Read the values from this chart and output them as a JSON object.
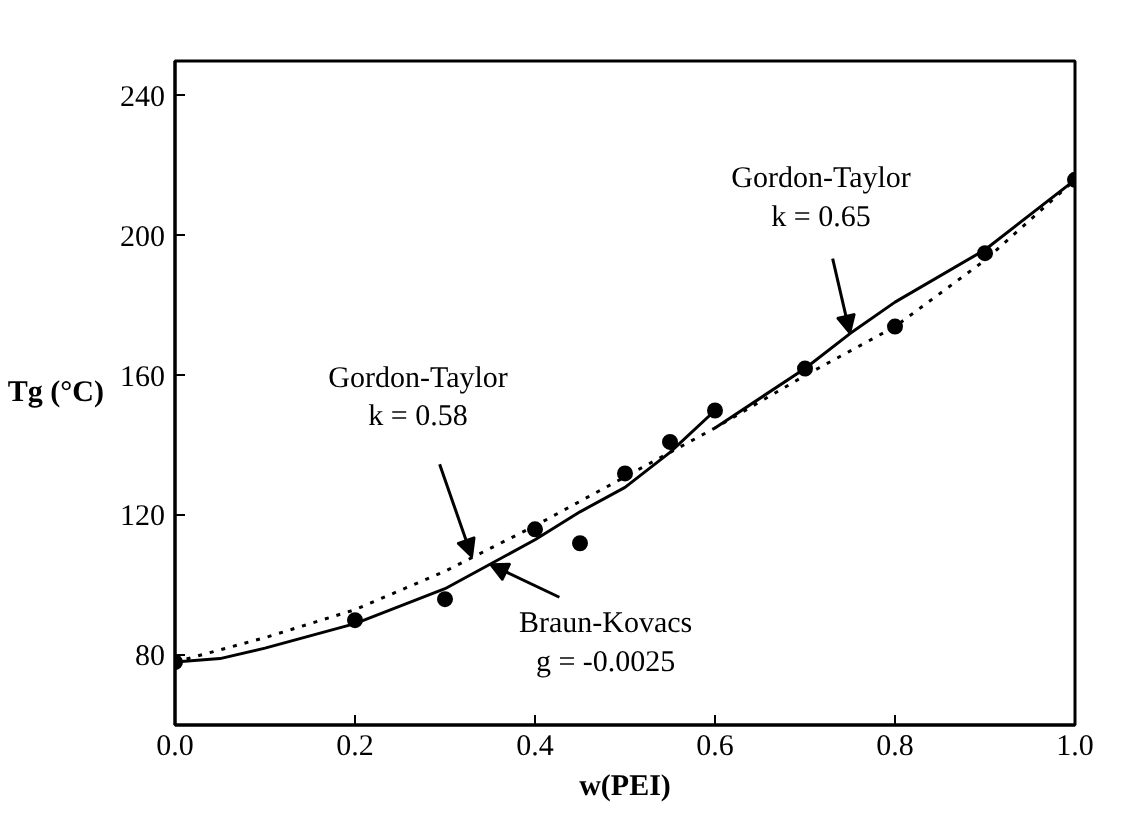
{
  "chart_data": {
    "type": "line",
    "xlabel": "w(PEI)",
    "ylabel": "Tg (°C)",
    "xlim": [
      0,
      1
    ],
    "ylim": [
      60,
      250
    ],
    "xticks": [
      {
        "value": 0,
        "label": "0.0"
      },
      0.2,
      0.4,
      0.6,
      0.8,
      {
        "value": 1,
        "label": "1.0"
      }
    ],
    "yticks": [
      80,
      120,
      160,
      200,
      240
    ],
    "grid": false,
    "series": [
      {
        "type": "scatter",
        "marker": "circle",
        "color": "#000000",
        "x": [
          0,
          0.2,
          0.3,
          0.4,
          0.45,
          0.5,
          0.55,
          0.6,
          0.7,
          0.8,
          0.9,
          1.0
        ],
        "values": [
          78,
          90,
          96,
          116,
          112,
          132,
          141,
          150,
          162,
          174,
          195,
          216
        ]
      },
      {
        "line_style": "dotted",
        "marker": "none",
        "color": "#000000",
        "x": [
          0,
          0.1,
          0.2,
          0.3,
          0.4,
          0.5,
          0.6,
          0.7,
          0.8,
          0.9,
          1.0
        ],
        "values": [
          78,
          85,
          93,
          104,
          117,
          131,
          145,
          160,
          174,
          193,
          216
        ]
      },
      {
        "line_style": "solid",
        "marker": "none",
        "color": "#000000",
        "x": [
          0,
          0.05,
          0.1,
          0.2,
          0.3,
          0.4,
          0.45,
          0.5,
          0.55,
          0.6
        ],
        "values": [
          78,
          79,
          82,
          89,
          99,
          113,
          121,
          128,
          138,
          150
        ]
      },
      {
        "line_style": "solid",
        "marker": "none",
        "color": "#000000",
        "x": [
          0.6,
          0.7,
          0.75,
          0.8,
          0.9,
          1.0
        ],
        "values": [
          145,
          162,
          172,
          181,
          196,
          216
        ]
      }
    ],
    "annotations": [
      {
        "text": "Gordon-Taylor\nk = 0.58",
        "x": 0.33,
        "y": 108
      },
      {
        "text": "Braun-Kovacs\ng = -0.0025",
        "x": 0.35,
        "y": 106
      },
      {
        "text": "Gordon-Taylor\nk = 0.65",
        "x": 0.75,
        "y": 172
      }
    ]
  }
}
